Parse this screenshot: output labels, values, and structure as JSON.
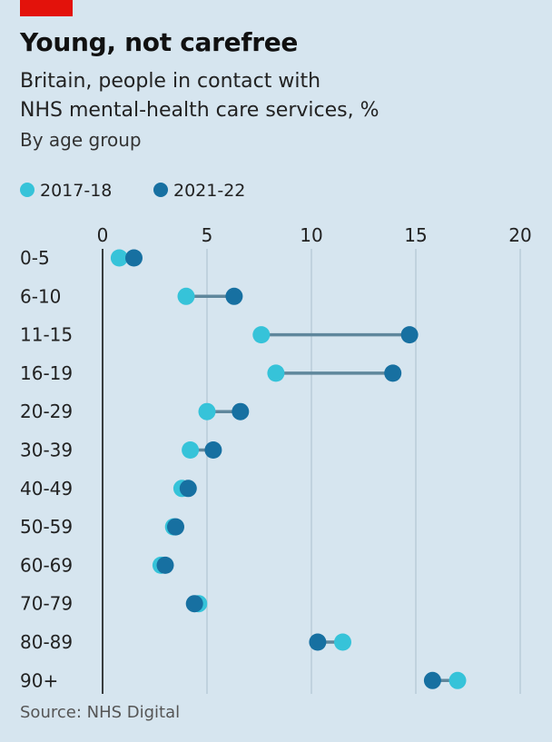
{
  "header": {
    "title": "Young, not carefree",
    "subtitle_line1": "Britain, people in contact with",
    "subtitle_line2": "NHS mental-health care services, %",
    "subtitle_secondary": "By age group"
  },
  "colors": {
    "background": "#d6e5ef",
    "accent_tag": "#e3120b",
    "series_2017": "#36c3d9",
    "series_2021": "#1770a1",
    "connector": "#5f879c",
    "gridline": "#a9bfcc"
  },
  "legend": {
    "items": [
      {
        "label": "2017-18",
        "color": "#36c3d9"
      },
      {
        "label": "2021-22",
        "color": "#1770a1"
      }
    ]
  },
  "chart_data": {
    "type": "dumbbell",
    "title": "Young, not carefree",
    "subtitle": "Britain, people in contact with NHS mental-health care services, %",
    "xlim": [
      0,
      20
    ],
    "xticks": [
      0,
      5,
      10,
      15,
      20
    ],
    "xtick_labels": [
      "0",
      "5",
      "10",
      "15",
      "20"
    ],
    "x_axis_position": "top",
    "grid": "vertical",
    "legend_position": "top-left",
    "categories": [
      "0-5",
      "6-10",
      "11-15",
      "16-19",
      "20-29",
      "30-39",
      "40-49",
      "50-59",
      "60-69",
      "70-79",
      "80-89",
      "90+"
    ],
    "series": [
      {
        "name": "2017-18",
        "values": [
          0.8,
          4.0,
          7.6,
          8.3,
          5.0,
          4.2,
          3.8,
          3.4,
          2.8,
          4.6,
          11.5,
          17.0
        ]
      },
      {
        "name": "2021-22",
        "values": [
          1.5,
          6.3,
          14.7,
          13.9,
          6.6,
          5.3,
          4.1,
          3.5,
          3.0,
          4.4,
          10.3,
          15.8
        ]
      }
    ]
  },
  "footer": {
    "source": "Source: NHS Digital"
  }
}
